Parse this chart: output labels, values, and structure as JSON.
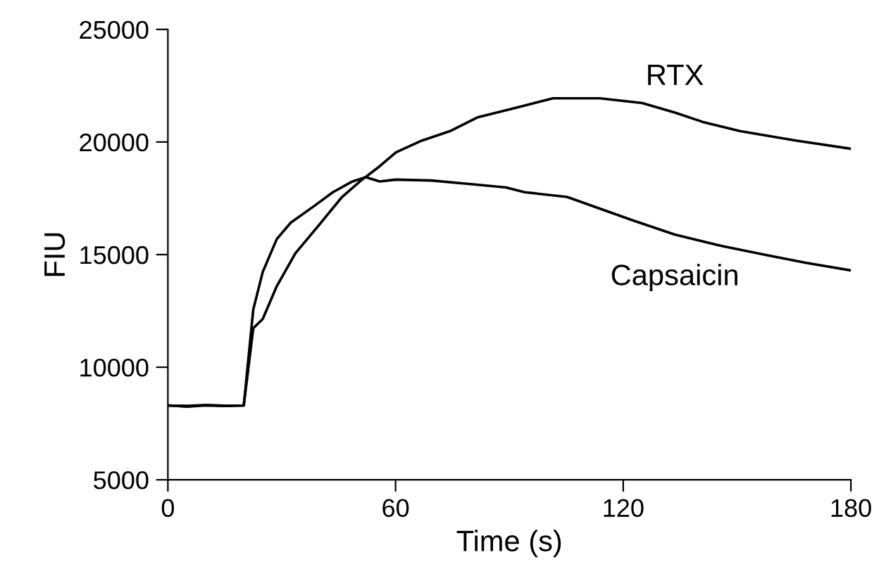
{
  "chart_data": {
    "type": "line",
    "xlabel": "Time (s)",
    "ylabel": "FIU",
    "xlim": [
      0,
      180
    ],
    "xticks": [
      0,
      60,
      120,
      180
    ],
    "ylim": [
      5000,
      25000
    ],
    "yticks": [
      5000,
      10000,
      15000,
      20000,
      25000
    ],
    "grid": false,
    "legend": false,
    "marker": "none",
    "line_style": "solid",
    "series": [
      {
        "name": "RTX",
        "color": "#000000",
        "x": [
          0,
          5,
          10,
          15,
          20,
          22.5,
          25,
          28.7,
          33.6,
          39.8,
          45.9,
          50.9,
          55.8,
          60.1,
          66.9,
          74.3,
          81.7,
          94.1,
          101.5,
          113.8,
          125,
          133.6,
          141,
          150.9,
          165.7,
          180
        ],
        "values": [
          8300,
          8250,
          8300,
          8280,
          8300,
          11730,
          12140,
          13600,
          15060,
          16310,
          17560,
          18290,
          18920,
          19540,
          20060,
          20480,
          21100,
          21620,
          21940,
          21940,
          21730,
          21310,
          20890,
          20480,
          20060,
          19700
        ]
      },
      {
        "name": "Capsaicin",
        "color": "#000000",
        "x": [
          0,
          5,
          10,
          15,
          20,
          22.5,
          25,
          28.7,
          32.4,
          38.5,
          43.5,
          48.4,
          52.1,
          55.8,
          60.1,
          69.4,
          79.3,
          89.1,
          94,
          105.2,
          122.5,
          133.6,
          146,
          158.3,
          168,
          180
        ],
        "values": [
          8300,
          8280,
          8320,
          8290,
          8300,
          12560,
          14230,
          15690,
          16420,
          17150,
          17770,
          18230,
          18440,
          18250,
          18330,
          18290,
          18140,
          17980,
          17770,
          17560,
          16520,
          15890,
          15380,
          14960,
          14640,
          14300
        ]
      }
    ]
  }
}
